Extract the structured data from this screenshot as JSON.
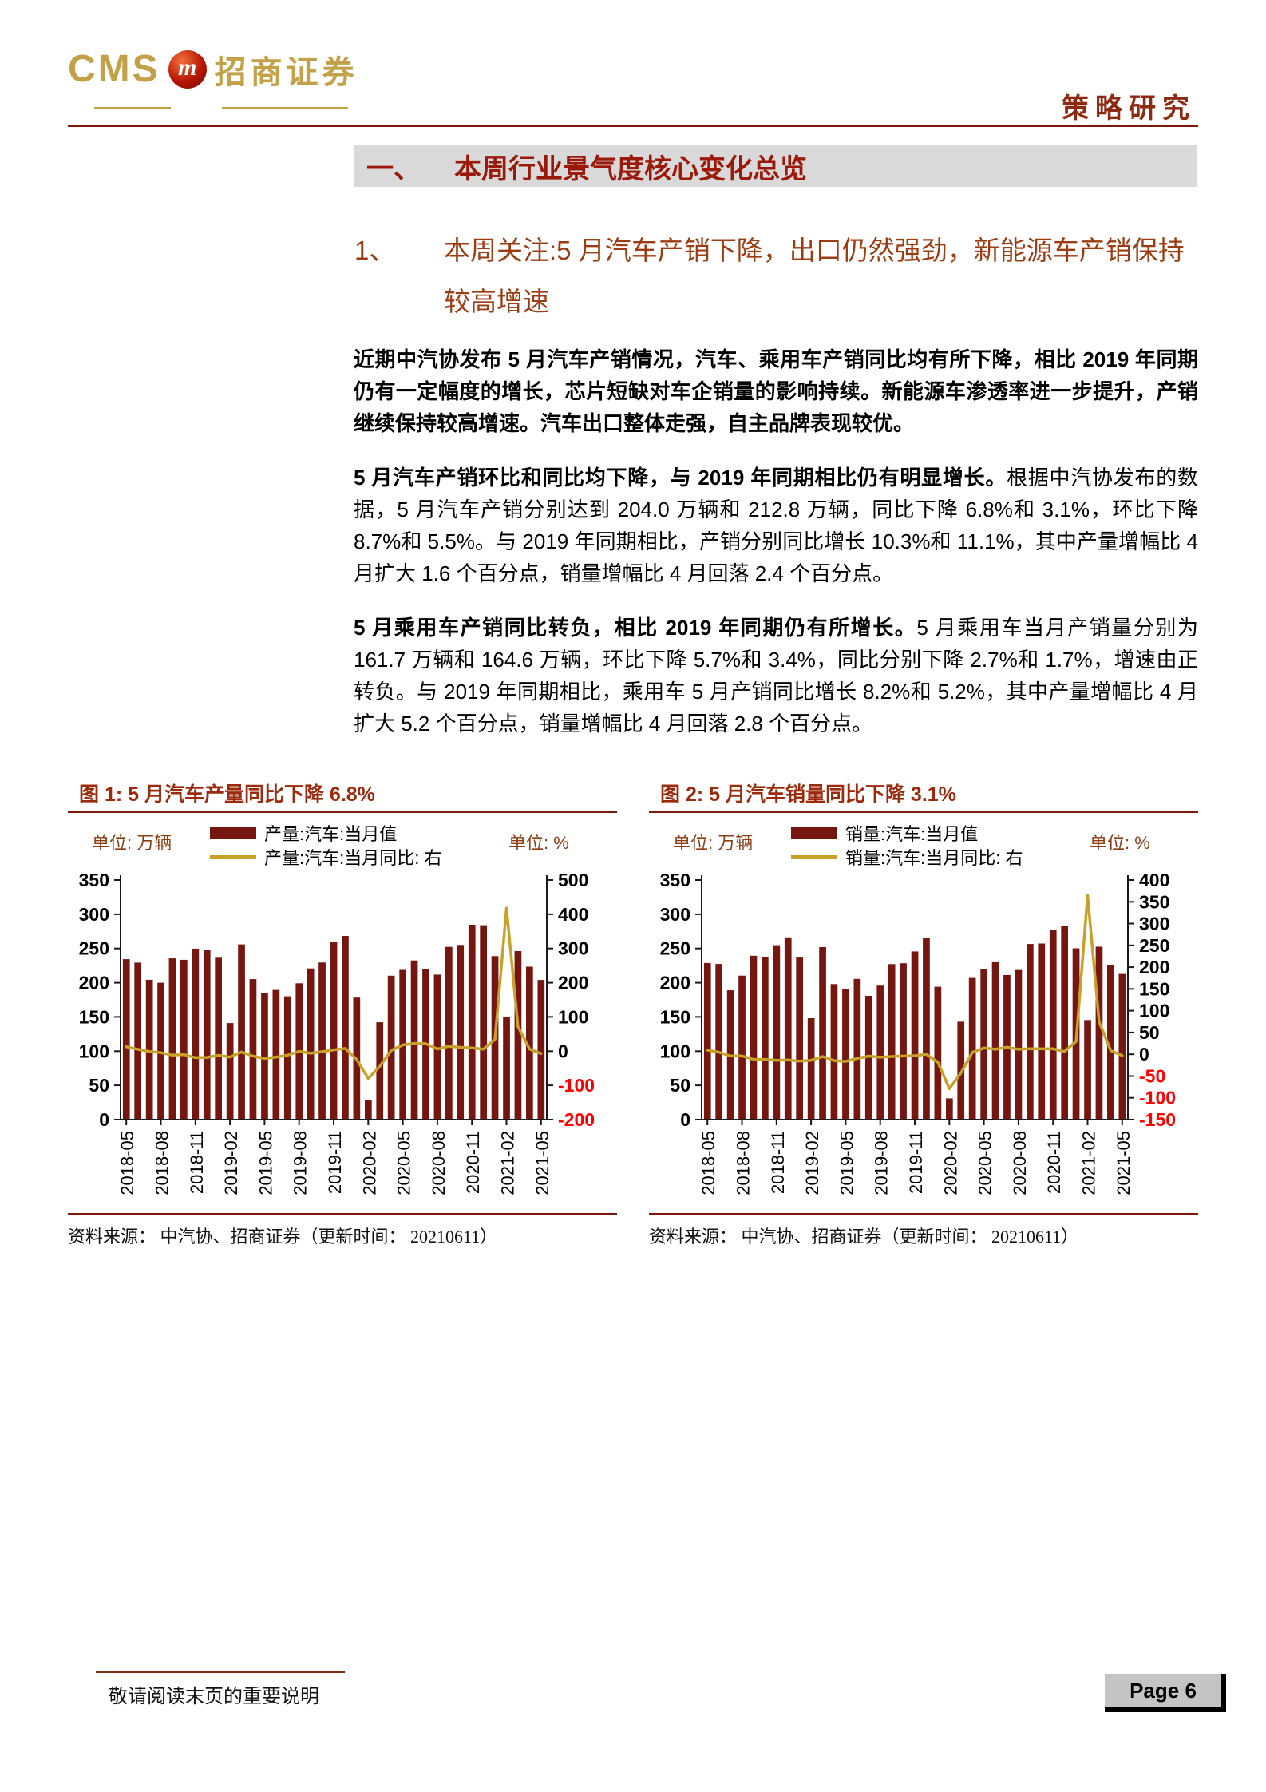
{
  "header": {
    "logo_cms": "CMS",
    "logo_m": "m",
    "logo_brand": "招商证券",
    "report_type": "策略研究"
  },
  "section": {
    "number": "一、",
    "title": "本周行业景气度核心变化总览"
  },
  "subsection": {
    "number": "1、",
    "title": "本周关注:5 月汽车产销下降，出口仍然强劲，新能源车产销保持较高增速"
  },
  "paragraphs": {
    "p1": "近期中汽协发布 5 月汽车产销情况，汽车、乘用车产销同比均有所下降，相比 2019 年同期仍有一定幅度的增长，芯片短缺对车企销量的影响持续。新能源车渗透率进一步提升，产销继续保持较高增速。汽车出口整体走强，自主品牌表现较优。",
    "p2_bold": "5 月汽车产销环比和同比均下降，与 2019 年同期相比仍有明显增长。",
    "p2_rest": "根据中汽协发布的数据，5 月汽车产销分别达到 204.0 万辆和 212.8 万辆，同比下降 6.8%和 3.1%，环比下降 8.7%和 5.5%。与 2019 年同期相比，产销分别同比增长 10.3%和 11.1%，其中产量增幅比 4 月扩大 1.6 个百分点，销量增幅比 4 月回落 2.4 个百分点。",
    "p3_bold": "5 月乘用车产销同比转负，相比 2019 年同期仍有所增长。",
    "p3_rest": "5 月乘用车当月产销量分别为 161.7 万辆和 164.6 万辆，环比下降 5.7%和 3.4%，同比分别下降 2.7%和 1.7%，增速由正转负。与 2019 年同期相比，乘用车 5 月产销同比增长 8.2%和 5.2%，其中产量增幅比 4 月扩大 5.2 个百分点，销量增幅比 4 月回落 2.8 个百分点。"
  },
  "footer": {
    "disclaimer": "敬请阅读末页的重要说明",
    "page": "Page 6"
  },
  "colors": {
    "bar": "#761610",
    "line": "#C8A12B",
    "negative_tick": "#FF0000",
    "accent_rule": "#7E180C",
    "gray_bar": "#D9D9D9",
    "gold": "#C2A149"
  },
  "chart_data": [
    {
      "type": "bar",
      "title": "图 1: 5 月汽车产量同比下降 6.8%",
      "source": "资料来源： 中汽协、招商证券（更新时间： 20210611）",
      "categories": [
        "2018-05",
        "2018-06",
        "2018-07",
        "2018-08",
        "2018-09",
        "2018-10",
        "2018-11",
        "2018-12",
        "2019-01",
        "2019-02",
        "2019-03",
        "2019-04",
        "2019-05",
        "2019-06",
        "2019-07",
        "2019-08",
        "2019-09",
        "2019-10",
        "2019-11",
        "2019-12",
        "2020-01",
        "2020-02",
        "2020-03",
        "2020-04",
        "2020-05",
        "2020-06",
        "2020-07",
        "2020-08",
        "2020-09",
        "2020-10",
        "2020-11",
        "2020-12",
        "2021-01",
        "2021-02",
        "2021-03",
        "2021-04",
        "2021-05"
      ],
      "series": [
        {
          "name": "产量:汽车:当月值",
          "type": "bar",
          "axis": "left",
          "values": [
            234.4,
            229.4,
            204.3,
            200.0,
            235.6,
            233.4,
            249.8,
            248.2,
            236.5,
            141.0,
            256.0,
            205.2,
            184.8,
            189.5,
            180.1,
            199.1,
            220.9,
            229.5,
            259.3,
            268.3,
            178.3,
            28.5,
            142.2,
            210.2,
            218.7,
            232.5,
            220.1,
            211.9,
            252.4,
            255.2,
            284.7,
            284.0,
            238.8,
            150.3,
            246.2,
            223.4,
            204.0
          ]
        },
        {
          "name": "产量:汽车:当月同比: 右",
          "type": "line",
          "axis": "right",
          "values": [
            12.8,
            5.5,
            -0.7,
            -4.4,
            -11.7,
            -10.1,
            -18.9,
            -18.3,
            -12.1,
            -17.4,
            -2.7,
            -14.5,
            -21.2,
            -17.4,
            -11.9,
            -0.5,
            -6.2,
            -1.7,
            3.8,
            8.1,
            -24.6,
            -79.8,
            -44.5,
            2.3,
            18.2,
            22.5,
            21.9,
            6.3,
            14.1,
            11.1,
            9.6,
            5.7,
            34.6,
            418.2,
            71.6,
            6.3,
            -6.8
          ]
        }
      ],
      "left_axis": {
        "label": "单位: 万辆",
        "min": 0,
        "max": 350,
        "step": 50
      },
      "right_axis": {
        "label": "单位: %",
        "min": -200,
        "max": 500,
        "step": 100
      },
      "x_tick_every": 3,
      "grid": false,
      "legend_position": "top"
    },
    {
      "type": "bar",
      "title": "图 2: 5 月汽车销量同比下降 3.1%",
      "source": "资料来源： 中汽协、招商证券（更新时间： 20210611）",
      "categories": [
        "2018-05",
        "2018-06",
        "2018-07",
        "2018-08",
        "2018-09",
        "2018-10",
        "2018-11",
        "2018-12",
        "2019-01",
        "2019-02",
        "2019-03",
        "2019-04",
        "2019-05",
        "2019-06",
        "2019-07",
        "2019-08",
        "2019-09",
        "2019-10",
        "2019-11",
        "2019-12",
        "2020-01",
        "2020-02",
        "2020-03",
        "2020-04",
        "2020-05",
        "2020-06",
        "2020-07",
        "2020-08",
        "2020-09",
        "2020-10",
        "2020-11",
        "2020-12",
        "2021-01",
        "2021-02",
        "2021-03",
        "2021-04",
        "2021-05"
      ],
      "series": [
        {
          "name": "销量:汽车:当月值",
          "type": "bar",
          "axis": "left",
          "values": [
            228.8,
            227.4,
            188.9,
            210.3,
            239.4,
            238.0,
            254.8,
            266.2,
            236.7,
            148.2,
            252.0,
            198.0,
            191.3,
            205.6,
            180.8,
            195.8,
            227.1,
            228.4,
            245.7,
            265.8,
            194.1,
            31.0,
            143.0,
            207.0,
            219.4,
            230.0,
            211.2,
            218.6,
            256.5,
            257.3,
            277.0,
            283.1,
            250.3,
            145.5,
            252.6,
            225.2,
            212.8
          ]
        },
        {
          "name": "销量:汽车:当月同比: 右",
          "type": "line",
          "axis": "right",
          "values": [
            9.6,
            4.8,
            -4.0,
            -3.8,
            -11.6,
            -11.7,
            -13.9,
            -13.0,
            -15.8,
            -13.8,
            -5.2,
            -14.6,
            -16.4,
            -9.6,
            -4.3,
            -6.9,
            -5.2,
            -4.0,
            -3.6,
            -0.1,
            -18.0,
            -79.1,
            -43.3,
            4.5,
            14.5,
            11.6,
            16.4,
            11.6,
            12.8,
            12.5,
            12.7,
            6.4,
            29.5,
            364.8,
            74.9,
            8.6,
            -3.1
          ]
        }
      ],
      "left_axis": {
        "label": "单位: 万辆",
        "min": 0,
        "max": 350,
        "step": 50
      },
      "right_axis": {
        "label": "单位: %",
        "min": -150,
        "max": 400,
        "step": 50
      },
      "x_tick_every": 3,
      "grid": false,
      "legend_position": "top"
    }
  ]
}
